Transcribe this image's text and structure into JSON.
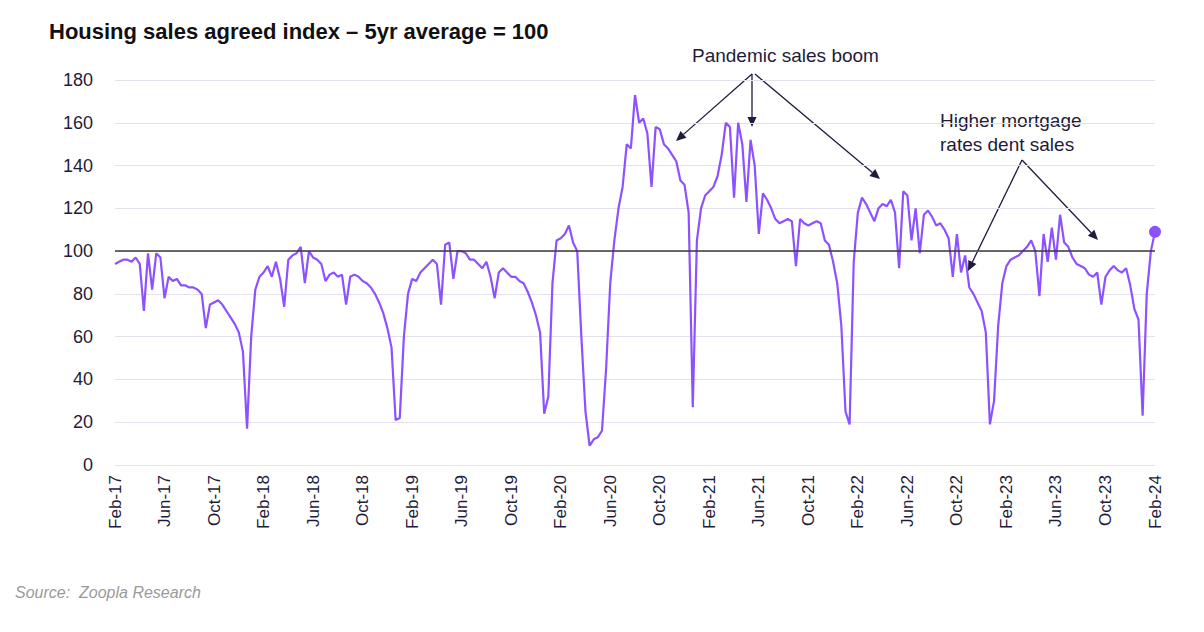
{
  "chart_data": {
    "type": "line",
    "title": "Housing sales agreed index – 5yr average = 100",
    "source": "Source:  Zoopla Research",
    "annotations": [
      "Pandemic sales boom",
      "Higher mortgage rates dent sales"
    ],
    "color": "#8c52ff",
    "marker": "end",
    "grid": true,
    "reference_line": 100,
    "ylim": [
      0,
      180
    ],
    "yticks": [
      0,
      20,
      40,
      60,
      80,
      100,
      120,
      140,
      160,
      180
    ],
    "categories": [
      "Feb-17",
      null,
      null,
      null,
      null,
      null,
      null,
      null,
      null,
      null,
      null,
      null,
      "Jun-17",
      null,
      null,
      null,
      null,
      null,
      null,
      null,
      null,
      null,
      null,
      null,
      "Oct-17",
      null,
      null,
      null,
      null,
      null,
      null,
      null,
      null,
      null,
      null,
      null,
      "Feb-18",
      null,
      null,
      null,
      null,
      null,
      null,
      null,
      null,
      null,
      null,
      null,
      "Jun-18",
      null,
      null,
      null,
      null,
      null,
      null,
      null,
      null,
      null,
      null,
      null,
      "Oct-18",
      null,
      null,
      null,
      null,
      null,
      null,
      null,
      null,
      null,
      null,
      null,
      "Feb-19",
      null,
      null,
      null,
      null,
      null,
      null,
      null,
      null,
      null,
      null,
      null,
      "Jun-19",
      null,
      null,
      null,
      null,
      null,
      null,
      null,
      null,
      null,
      null,
      null,
      "Oct-19",
      null,
      null,
      null,
      null,
      null,
      null,
      null,
      null,
      null,
      null,
      null,
      "Feb-20",
      null,
      null,
      null,
      null,
      null,
      null,
      null,
      null,
      null,
      null,
      null,
      "Jun-20",
      null,
      null,
      null,
      null,
      null,
      null,
      null,
      null,
      null,
      null,
      null,
      "Oct-20",
      null,
      null,
      null,
      null,
      null,
      null,
      null,
      null,
      null,
      null,
      null,
      "Feb-21",
      null,
      null,
      null,
      null,
      null,
      null,
      null,
      null,
      null,
      null,
      null,
      "Jun-21",
      null,
      null,
      null,
      null,
      null,
      null,
      null,
      null,
      null,
      null,
      null,
      "Oct-21",
      null,
      null,
      null,
      null,
      null,
      null,
      null,
      null,
      null,
      null,
      null,
      "Feb-22",
      null,
      null,
      null,
      null,
      null,
      null,
      null,
      null,
      null,
      null,
      null,
      "Jun-22",
      null,
      null,
      null,
      null,
      null,
      null,
      null,
      null,
      null,
      null,
      null,
      "Oct-22",
      null,
      null,
      null,
      null,
      null,
      null,
      null,
      null,
      null,
      null,
      null,
      "Feb-23",
      null,
      null,
      null,
      null,
      null,
      null,
      null,
      null,
      null,
      null,
      null,
      "Jun-23",
      null,
      null,
      null,
      null,
      null,
      null,
      null,
      null,
      null,
      null,
      null,
      "Oct-23",
      null,
      null,
      null,
      null,
      null,
      null,
      null,
      null,
      null,
      null,
      null,
      "Feb-24"
    ],
    "values": [
      94,
      95,
      96,
      96,
      95,
      97,
      94,
      72,
      99,
      82,
      99,
      97,
      78,
      88,
      86,
      87,
      84,
      84,
      83,
      83,
      82,
      80,
      64,
      75,
      76,
      77,
      75,
      72,
      69,
      66,
      62,
      53,
      17,
      60,
      82,
      88,
      90,
      93,
      88,
      95,
      87,
      74,
      96,
      98,
      99,
      102,
      85,
      100,
      97,
      96,
      94,
      86,
      89,
      90,
      88,
      89,
      75,
      88,
      89,
      88,
      86,
      85,
      83,
      80,
      76,
      71,
      64,
      55,
      21,
      22,
      60,
      80,
      87,
      86,
      90,
      92,
      94,
      96,
      94,
      75,
      103,
      104,
      87,
      100,
      100,
      99,
      96,
      96,
      94,
      92,
      95,
      88,
      78,
      90,
      92,
      90,
      88,
      88,
      86,
      85,
      81,
      76,
      70,
      62,
      24,
      32,
      85,
      105,
      106,
      108,
      112,
      104,
      100,
      60,
      25,
      9,
      12,
      13,
      16,
      45,
      85,
      105,
      120,
      130,
      150,
      148,
      173,
      160,
      162,
      155,
      130,
      158,
      157,
      150,
      148,
      145,
      142,
      133,
      131,
      118,
      27,
      105,
      120,
      126,
      128,
      130,
      135,
      145,
      160,
      158,
      125,
      160,
      150,
      123,
      152,
      140,
      108,
      127,
      124,
      120,
      115,
      113,
      114,
      115,
      114,
      93,
      115,
      113,
      112,
      113,
      114,
      113,
      105,
      103,
      95,
      85,
      65,
      25,
      19,
      95,
      118,
      125,
      122,
      118,
      114,
      120,
      122,
      121,
      124,
      118,
      92,
      128,
      126,
      105,
      120,
      99,
      117,
      119,
      116,
      112,
      113,
      110,
      106,
      88,
      108,
      90,
      98,
      83,
      80,
      76,
      72,
      62,
      19,
      30,
      65,
      85,
      93,
      96,
      97,
      98,
      100,
      102,
      105,
      100,
      79,
      108,
      95,
      111,
      96,
      117,
      104,
      102,
      97,
      94,
      93,
      92,
      89,
      88,
      90,
      75,
      88,
      91,
      93,
      91,
      90,
      92,
      84,
      73,
      68,
      23,
      80,
      100,
      109
    ]
  }
}
